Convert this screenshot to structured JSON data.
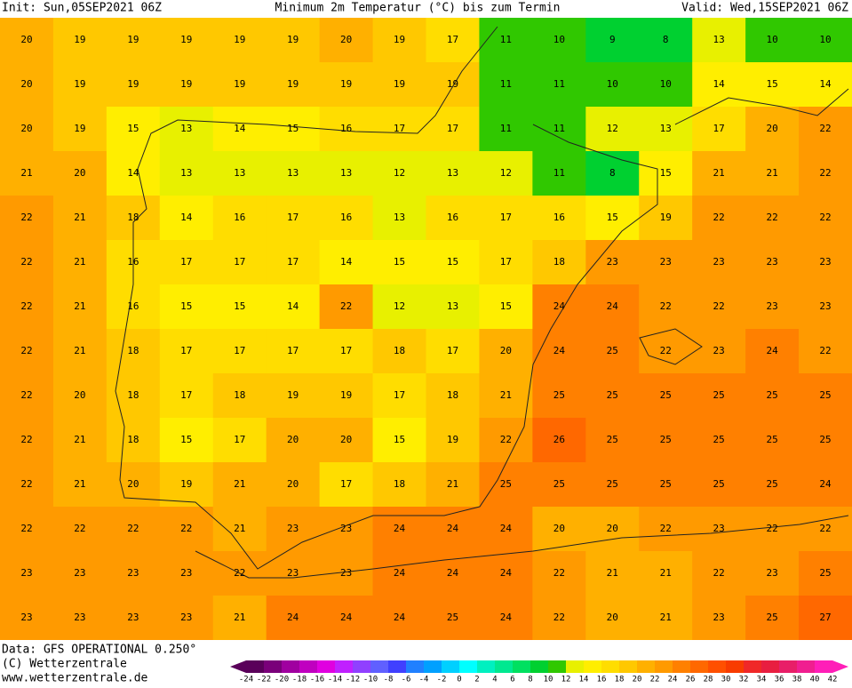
{
  "header": {
    "init": "Init: Sun,05SEP2021 06Z",
    "title": "Minimum 2m Temperatur (°C) bis zum Termin",
    "valid": "Valid: Wed,15SEP2021 06Z"
  },
  "footer": {
    "data": "Data: GFS OPERATIONAL 0.250°",
    "copyright": "(C) Wetterzentrale",
    "url": "www.wetterzentrale.de"
  },
  "map": {
    "grid": [
      [
        20,
        19,
        19,
        19,
        19,
        19,
        20,
        19,
        17,
        11,
        10,
        9,
        8,
        13,
        10,
        10
      ],
      [
        20,
        19,
        19,
        19,
        19,
        19,
        19,
        19,
        19,
        11,
        11,
        10,
        10,
        14,
        15,
        14
      ],
      [
        20,
        19,
        15,
        13,
        14,
        15,
        16,
        17,
        17,
        11,
        11,
        12,
        13,
        17,
        20,
        22
      ],
      [
        21,
        20,
        14,
        13,
        13,
        13,
        13,
        12,
        13,
        12,
        11,
        8,
        15,
        21,
        21,
        22
      ],
      [
        22,
        21,
        18,
        14,
        16,
        17,
        16,
        13,
        16,
        17,
        16,
        15,
        19,
        22,
        22,
        22
      ],
      [
        22,
        21,
        16,
        17,
        17,
        17,
        14,
        15,
        15,
        17,
        18,
        23,
        23,
        23,
        23,
        23
      ],
      [
        22,
        21,
        16,
        15,
        15,
        14,
        22,
        12,
        13,
        15,
        24,
        24,
        22,
        22,
        23,
        23
      ],
      [
        22,
        21,
        18,
        17,
        17,
        17,
        17,
        18,
        17,
        20,
        24,
        25,
        22,
        23,
        24,
        22
      ],
      [
        22,
        20,
        18,
        17,
        18,
        19,
        19,
        17,
        18,
        21,
        25,
        25,
        25,
        25,
        25,
        25
      ],
      [
        22,
        21,
        18,
        15,
        17,
        20,
        20,
        15,
        19,
        22,
        26,
        25,
        25,
        25,
        25,
        25
      ],
      [
        22,
        21,
        20,
        19,
        21,
        20,
        17,
        18,
        21,
        25,
        25,
        25,
        25,
        25,
        25,
        24
      ],
      [
        22,
        22,
        22,
        22,
        21,
        23,
        23,
        24,
        24,
        24,
        20,
        20,
        22,
        23,
        22,
        22
      ],
      [
        23,
        23,
        23,
        23,
        22,
        23,
        23,
        24,
        24,
        24,
        22,
        21,
        21,
        22,
        23,
        25
      ],
      [
        23,
        23,
        23,
        23,
        21,
        24,
        24,
        24,
        25,
        24,
        22,
        20,
        21,
        23,
        25,
        27
      ]
    ],
    "colorbar": {
      "ticks": [
        -24,
        -22,
        -20,
        -18,
        -16,
        -14,
        -12,
        -10,
        -8,
        -6,
        -4,
        -2,
        0,
        2,
        4,
        6,
        8,
        10,
        12,
        14,
        16,
        18,
        20,
        22,
        24,
        26,
        28,
        30,
        32,
        34,
        36,
        38,
        40,
        42
      ],
      "colors": [
        "#5a005a",
        "#7a007a",
        "#a000a0",
        "#c000c0",
        "#e000e0",
        "#c020ff",
        "#9040ff",
        "#6060ff",
        "#4040ff",
        "#2080ff",
        "#00a0ff",
        "#00d0ff",
        "#00ffff",
        "#00f0c0",
        "#00e890",
        "#00e060",
        "#00d030",
        "#30c800",
        "#e8f000",
        "#ffee00",
        "#ffdd00",
        "#ffc800",
        "#ffb000",
        "#ff9a00",
        "#ff8000",
        "#ff6800",
        "#ff5000",
        "#f83c00",
        "#f02828",
        "#e81e40",
        "#e81e68",
        "#f01e90",
        "#ff1eb8"
      ]
    }
  }
}
